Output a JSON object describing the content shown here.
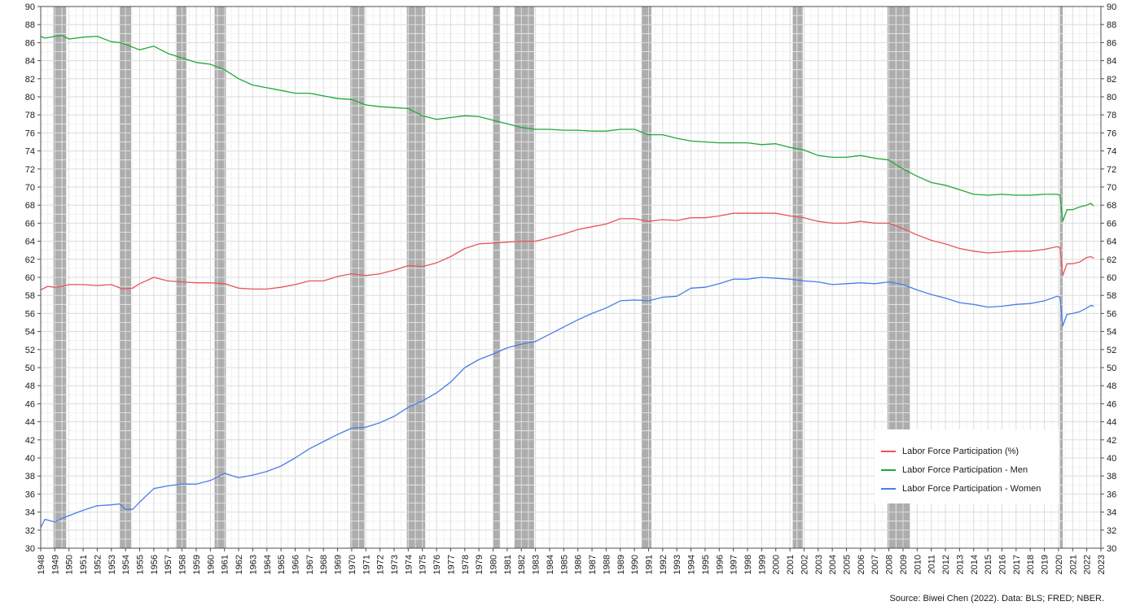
{
  "chart_data": {
    "type": "line",
    "title": "",
    "xlabel": "",
    "ylabel": "",
    "caption": "Source: Biwei Chen (2022). Data: BLS; FRED; NBER.",
    "xlim": [
      1948,
      2023
    ],
    "ylim": [
      30,
      90
    ],
    "x_ticks": [
      1948,
      1949,
      1950,
      1951,
      1952,
      1953,
      1954,
      1955,
      1956,
      1957,
      1958,
      1959,
      1960,
      1961,
      1962,
      1963,
      1964,
      1965,
      1966,
      1967,
      1968,
      1969,
      1970,
      1971,
      1972,
      1973,
      1974,
      1975,
      1976,
      1977,
      1978,
      1979,
      1980,
      1981,
      1982,
      1983,
      1984,
      1985,
      1986,
      1987,
      1988,
      1989,
      1990,
      1991,
      1992,
      1993,
      1994,
      1995,
      1996,
      1997,
      1998,
      1999,
      2000,
      2001,
      2002,
      2003,
      2004,
      2005,
      2006,
      2007,
      2008,
      2009,
      2010,
      2011,
      2012,
      2013,
      2014,
      2015,
      2016,
      2017,
      2018,
      2019,
      2020,
      2021,
      2022,
      2023
    ],
    "y_ticks": [
      30,
      32,
      34,
      36,
      38,
      40,
      42,
      44,
      46,
      48,
      50,
      52,
      54,
      56,
      58,
      60,
      62,
      64,
      66,
      68,
      70,
      72,
      74,
      76,
      78,
      80,
      82,
      84,
      86,
      88,
      90
    ],
    "grid": true,
    "legend_position": "bottom-right",
    "recessions": [
      [
        1948.9,
        1949.8
      ],
      [
        1953.6,
        1954.4
      ],
      [
        1957.6,
        1958.3
      ],
      [
        1960.3,
        1961.1
      ],
      [
        1969.9,
        1970.9
      ],
      [
        1973.9,
        1975.2
      ],
      [
        1980.0,
        1980.5
      ],
      [
        1981.5,
        1982.9
      ],
      [
        1990.5,
        1991.2
      ],
      [
        2001.2,
        2001.9
      ],
      [
        2007.9,
        2009.5
      ],
      [
        2020.1,
        2020.3
      ]
    ],
    "series": [
      {
        "name": "Labor Force Participation (%)",
        "color": "#e8555a",
        "points": [
          [
            1948.0,
            58.6
          ],
          [
            1948.5,
            59.0
          ],
          [
            1949.0,
            58.9
          ],
          [
            1949.5,
            59.0
          ],
          [
            1950.0,
            59.2
          ],
          [
            1951.0,
            59.2
          ],
          [
            1952.0,
            59.1
          ],
          [
            1953.0,
            59.2
          ],
          [
            1953.8,
            58.7
          ],
          [
            1954.5,
            58.8
          ],
          [
            1955.0,
            59.3
          ],
          [
            1956.0,
            60.0
          ],
          [
            1957.0,
            59.6
          ],
          [
            1958.0,
            59.5
          ],
          [
            1959.0,
            59.4
          ],
          [
            1960.0,
            59.4
          ],
          [
            1961.0,
            59.3
          ],
          [
            1962.0,
            58.8
          ],
          [
            1963.0,
            58.7
          ],
          [
            1964.0,
            58.7
          ],
          [
            1965.0,
            58.9
          ],
          [
            1966.0,
            59.2
          ],
          [
            1967.0,
            59.6
          ],
          [
            1968.0,
            59.6
          ],
          [
            1969.0,
            60.1
          ],
          [
            1970.0,
            60.4
          ],
          [
            1971.0,
            60.2
          ],
          [
            1972.0,
            60.4
          ],
          [
            1973.0,
            60.8
          ],
          [
            1974.0,
            61.3
          ],
          [
            1975.0,
            61.2
          ],
          [
            1976.0,
            61.6
          ],
          [
            1977.0,
            62.3
          ],
          [
            1978.0,
            63.2
          ],
          [
            1979.0,
            63.7
          ],
          [
            1980.0,
            63.8
          ],
          [
            1981.0,
            63.9
          ],
          [
            1982.0,
            64.0
          ],
          [
            1983.0,
            64.0
          ],
          [
            1984.0,
            64.4
          ],
          [
            1985.0,
            64.8
          ],
          [
            1986.0,
            65.3
          ],
          [
            1987.0,
            65.6
          ],
          [
            1988.0,
            65.9
          ],
          [
            1989.0,
            66.5
          ],
          [
            1990.0,
            66.5
          ],
          [
            1991.0,
            66.2
          ],
          [
            1992.0,
            66.4
          ],
          [
            1993.0,
            66.3
          ],
          [
            1994.0,
            66.6
          ],
          [
            1995.0,
            66.6
          ],
          [
            1996.0,
            66.8
          ],
          [
            1997.0,
            67.1
          ],
          [
            1998.0,
            67.1
          ],
          [
            1999.0,
            67.1
          ],
          [
            2000.0,
            67.1
          ],
          [
            2001.0,
            66.8
          ],
          [
            2002.0,
            66.6
          ],
          [
            2003.0,
            66.2
          ],
          [
            2004.0,
            66.0
          ],
          [
            2005.0,
            66.0
          ],
          [
            2006.0,
            66.2
          ],
          [
            2007.0,
            66.0
          ],
          [
            2008.0,
            66.0
          ],
          [
            2009.0,
            65.4
          ],
          [
            2010.0,
            64.7
          ],
          [
            2011.0,
            64.1
          ],
          [
            2012.0,
            63.7
          ],
          [
            2013.0,
            63.2
          ],
          [
            2014.0,
            62.9
          ],
          [
            2015.0,
            62.7
          ],
          [
            2016.0,
            62.8
          ],
          [
            2017.0,
            62.9
          ],
          [
            2018.0,
            62.9
          ],
          [
            2019.0,
            63.1
          ],
          [
            2019.9,
            63.4
          ],
          [
            2020.1,
            63.3
          ],
          [
            2020.3,
            60.2
          ],
          [
            2020.6,
            61.5
          ],
          [
            2021.0,
            61.5
          ],
          [
            2021.5,
            61.7
          ],
          [
            2022.0,
            62.2
          ],
          [
            2022.3,
            62.3
          ],
          [
            2022.5,
            62.1
          ]
        ]
      },
      {
        "name": "Labor Force Participation - Men",
        "color": "#22a83a",
        "points": [
          [
            1948.0,
            86.7
          ],
          [
            1948.3,
            86.5
          ],
          [
            1949.0,
            86.7
          ],
          [
            1949.5,
            86.8
          ],
          [
            1950.0,
            86.4
          ],
          [
            1951.0,
            86.6
          ],
          [
            1952.0,
            86.7
          ],
          [
            1953.0,
            86.1
          ],
          [
            1953.6,
            86.0
          ],
          [
            1954.0,
            85.8
          ],
          [
            1955.0,
            85.2
          ],
          [
            1956.0,
            85.6
          ],
          [
            1957.0,
            84.8
          ],
          [
            1958.0,
            84.3
          ],
          [
            1959.0,
            83.8
          ],
          [
            1960.0,
            83.6
          ],
          [
            1961.0,
            83.0
          ],
          [
            1962.0,
            82.0
          ],
          [
            1963.0,
            81.3
          ],
          [
            1964.0,
            81.0
          ],
          [
            1965.0,
            80.7
          ],
          [
            1966.0,
            80.4
          ],
          [
            1967.0,
            80.4
          ],
          [
            1968.0,
            80.1
          ],
          [
            1969.0,
            79.8
          ],
          [
            1970.0,
            79.7
          ],
          [
            1971.0,
            79.1
          ],
          [
            1972.0,
            78.9
          ],
          [
            1973.0,
            78.8
          ],
          [
            1974.0,
            78.7
          ],
          [
            1975.0,
            77.9
          ],
          [
            1976.0,
            77.5
          ],
          [
            1977.0,
            77.7
          ],
          [
            1978.0,
            77.9
          ],
          [
            1979.0,
            77.8
          ],
          [
            1980.0,
            77.4
          ],
          [
            1981.0,
            77.0
          ],
          [
            1982.0,
            76.6
          ],
          [
            1983.0,
            76.4
          ],
          [
            1984.0,
            76.4
          ],
          [
            1985.0,
            76.3
          ],
          [
            1986.0,
            76.3
          ],
          [
            1987.0,
            76.2
          ],
          [
            1988.0,
            76.2
          ],
          [
            1989.0,
            76.4
          ],
          [
            1990.0,
            76.4
          ],
          [
            1991.0,
            75.8
          ],
          [
            1992.0,
            75.8
          ],
          [
            1993.0,
            75.4
          ],
          [
            1994.0,
            75.1
          ],
          [
            1995.0,
            75.0
          ],
          [
            1996.0,
            74.9
          ],
          [
            1997.0,
            74.9
          ],
          [
            1998.0,
            74.9
          ],
          [
            1999.0,
            74.7
          ],
          [
            2000.0,
            74.8
          ],
          [
            2001.0,
            74.4
          ],
          [
            2002.0,
            74.1
          ],
          [
            2003.0,
            73.5
          ],
          [
            2004.0,
            73.3
          ],
          [
            2005.0,
            73.3
          ],
          [
            2006.0,
            73.5
          ],
          [
            2007.0,
            73.2
          ],
          [
            2008.0,
            73.0
          ],
          [
            2009.0,
            72.0
          ],
          [
            2010.0,
            71.2
          ],
          [
            2011.0,
            70.5
          ],
          [
            2012.0,
            70.2
          ],
          [
            2013.0,
            69.7
          ],
          [
            2014.0,
            69.2
          ],
          [
            2015.0,
            69.1
          ],
          [
            2016.0,
            69.2
          ],
          [
            2017.0,
            69.1
          ],
          [
            2018.0,
            69.1
          ],
          [
            2019.0,
            69.2
          ],
          [
            2019.9,
            69.2
          ],
          [
            2020.1,
            69.1
          ],
          [
            2020.3,
            66.2
          ],
          [
            2020.6,
            67.5
          ],
          [
            2021.0,
            67.5
          ],
          [
            2021.5,
            67.8
          ],
          [
            2022.0,
            68.0
          ],
          [
            2022.3,
            68.2
          ],
          [
            2022.5,
            67.9
          ]
        ]
      },
      {
        "name": "Labor Force Participation - Women",
        "color": "#4a7de8",
        "points": [
          [
            1948.0,
            32.3
          ],
          [
            1948.3,
            33.2
          ],
          [
            1949.0,
            32.9
          ],
          [
            1949.5,
            33.3
          ],
          [
            1950.0,
            33.6
          ],
          [
            1951.0,
            34.2
          ],
          [
            1952.0,
            34.7
          ],
          [
            1953.0,
            34.8
          ],
          [
            1953.6,
            34.9
          ],
          [
            1954.0,
            34.3
          ],
          [
            1954.5,
            34.3
          ],
          [
            1955.0,
            35.1
          ],
          [
            1956.0,
            36.6
          ],
          [
            1957.0,
            36.9
          ],
          [
            1958.0,
            37.1
          ],
          [
            1959.0,
            37.1
          ],
          [
            1960.0,
            37.5
          ],
          [
            1961.0,
            38.3
          ],
          [
            1962.0,
            37.8
          ],
          [
            1963.0,
            38.1
          ],
          [
            1964.0,
            38.5
          ],
          [
            1965.0,
            39.1
          ],
          [
            1966.0,
            40.0
          ],
          [
            1967.0,
            41.0
          ],
          [
            1968.0,
            41.8
          ],
          [
            1969.0,
            42.6
          ],
          [
            1970.0,
            43.3
          ],
          [
            1971.0,
            43.4
          ],
          [
            1972.0,
            43.9
          ],
          [
            1973.0,
            44.6
          ],
          [
            1974.0,
            45.6
          ],
          [
            1975.0,
            46.3
          ],
          [
            1976.0,
            47.2
          ],
          [
            1977.0,
            48.4
          ],
          [
            1978.0,
            50.0
          ],
          [
            1979.0,
            50.9
          ],
          [
            1980.0,
            51.5
          ],
          [
            1981.0,
            52.2
          ],
          [
            1982.0,
            52.6
          ],
          [
            1983.0,
            52.9
          ],
          [
            1984.0,
            53.7
          ],
          [
            1985.0,
            54.5
          ],
          [
            1986.0,
            55.3
          ],
          [
            1987.0,
            56.0
          ],
          [
            1988.0,
            56.6
          ],
          [
            1989.0,
            57.4
          ],
          [
            1990.0,
            57.5
          ],
          [
            1991.0,
            57.4
          ],
          [
            1992.0,
            57.8
          ],
          [
            1993.0,
            57.9
          ],
          [
            1994.0,
            58.8
          ],
          [
            1995.0,
            58.9
          ],
          [
            1996.0,
            59.3
          ],
          [
            1997.0,
            59.8
          ],
          [
            1998.0,
            59.8
          ],
          [
            1999.0,
            60.0
          ],
          [
            2000.0,
            59.9
          ],
          [
            2001.0,
            59.8
          ],
          [
            2002.0,
            59.6
          ],
          [
            2003.0,
            59.5
          ],
          [
            2004.0,
            59.2
          ],
          [
            2005.0,
            59.3
          ],
          [
            2006.0,
            59.4
          ],
          [
            2007.0,
            59.3
          ],
          [
            2008.0,
            59.5
          ],
          [
            2009.0,
            59.2
          ],
          [
            2010.0,
            58.6
          ],
          [
            2011.0,
            58.1
          ],
          [
            2012.0,
            57.7
          ],
          [
            2013.0,
            57.2
          ],
          [
            2014.0,
            57.0
          ],
          [
            2015.0,
            56.7
          ],
          [
            2016.0,
            56.8
          ],
          [
            2017.0,
            57.0
          ],
          [
            2018.0,
            57.1
          ],
          [
            2019.0,
            57.4
          ],
          [
            2019.9,
            57.9
          ],
          [
            2020.1,
            57.8
          ],
          [
            2020.3,
            54.6
          ],
          [
            2020.6,
            55.9
          ],
          [
            2021.0,
            56.0
          ],
          [
            2021.5,
            56.2
          ],
          [
            2022.0,
            56.6
          ],
          [
            2022.3,
            56.9
          ],
          [
            2022.5,
            56.8
          ]
        ]
      }
    ]
  }
}
